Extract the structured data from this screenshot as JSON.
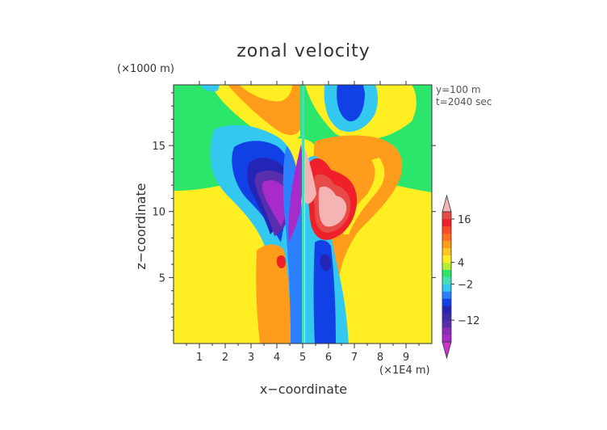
{
  "chart_data": {
    "type": "heatmap",
    "title": "zonal velocity",
    "xlabel": "x−coordinate",
    "ylabel": "z−coordinate",
    "x_unit": "(×1E4 m)",
    "y_unit": "(×1000 m)",
    "annotations": [
      "y=100 m",
      "t=2040 sec"
    ],
    "xlim": [
      0,
      10
    ],
    "ylim": [
      0,
      19.6
    ],
    "x_ticks": [
      1,
      2,
      3,
      4,
      5,
      6,
      7,
      8,
      9
    ],
    "y_ticks": [
      5,
      10,
      15
    ],
    "colorbar": {
      "tick_labels": [
        "16",
        "4",
        "−2",
        "−12"
      ],
      "tick_values": [
        16,
        4,
        -2,
        -12
      ],
      "levels": [
        -18,
        -16,
        -14,
        -12,
        -10,
        -8,
        -6,
        -4,
        -2,
        0,
        2,
        4,
        6,
        8,
        10,
        12,
        14,
        16,
        18
      ],
      "colors": [
        "#cc33cc",
        "#a82ac8",
        "#8a2ab8",
        "#5a2cae",
        "#3c2aa8",
        "#2424b6",
        "#1040e6",
        "#2a80ff",
        "#32c8f0",
        "#44e0b4",
        "#2ce66c",
        "#b4f030",
        "#ffee22",
        "#ffc420",
        "#ff9c1c",
        "#ff7020",
        "#ff4a26",
        "#f0202a",
        "#e84a48",
        "#f5b4b4"
      ],
      "extend": "both"
    }
  }
}
